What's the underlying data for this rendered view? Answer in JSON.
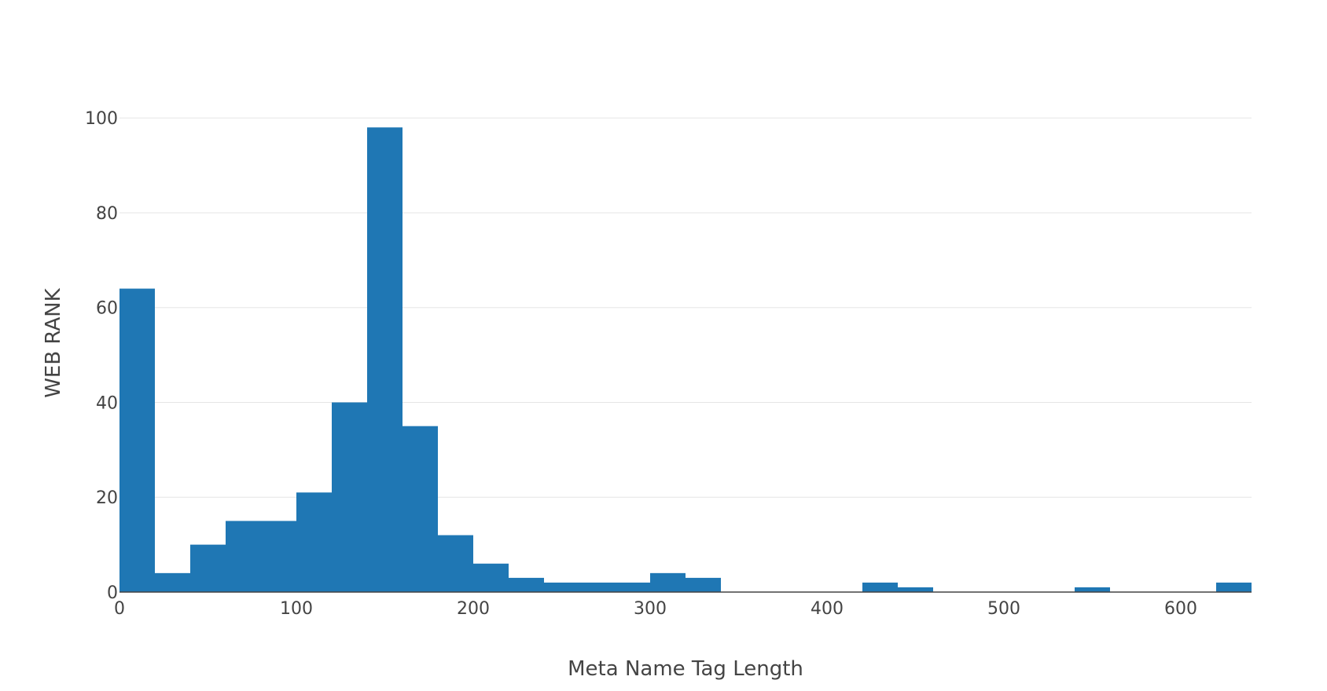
{
  "chart_data": {
    "type": "bar",
    "subtype": "histogram",
    "title": "",
    "xlabel": "Meta Name Tag Length",
    "ylabel": "WEB RANK",
    "xlim": [
      0,
      640
    ],
    "ylim": [
      0,
      105
    ],
    "bin_width": 20,
    "bins_start": [
      0,
      20,
      40,
      60,
      80,
      100,
      120,
      140,
      160,
      180,
      200,
      220,
      240,
      260,
      280,
      300,
      320,
      340,
      360,
      380,
      400,
      420,
      440,
      460,
      480,
      500,
      520,
      540,
      560,
      580,
      600,
      620
    ],
    "values": [
      64,
      4,
      10,
      15,
      15,
      21,
      40,
      98,
      35,
      12,
      6,
      3,
      2,
      2,
      2,
      4,
      3,
      0,
      0,
      0,
      0,
      2,
      1,
      0,
      0,
      0,
      0,
      1,
      0,
      0,
      0,
      2
    ],
    "x_ticks": [
      0,
      100,
      200,
      300,
      400,
      500,
      600
    ],
    "x_tick_labels": [
      "0",
      "100",
      "200",
      "300",
      "400",
      "500",
      "600"
    ],
    "y_ticks": [
      0,
      20,
      40,
      60,
      80,
      100
    ],
    "y_tick_labels": [
      "0",
      "20",
      "40",
      "60",
      "80",
      "100"
    ],
    "grid": true,
    "legend": "none",
    "bar_color": "#1f77b4",
    "grid_color": "#e6e6e6"
  }
}
